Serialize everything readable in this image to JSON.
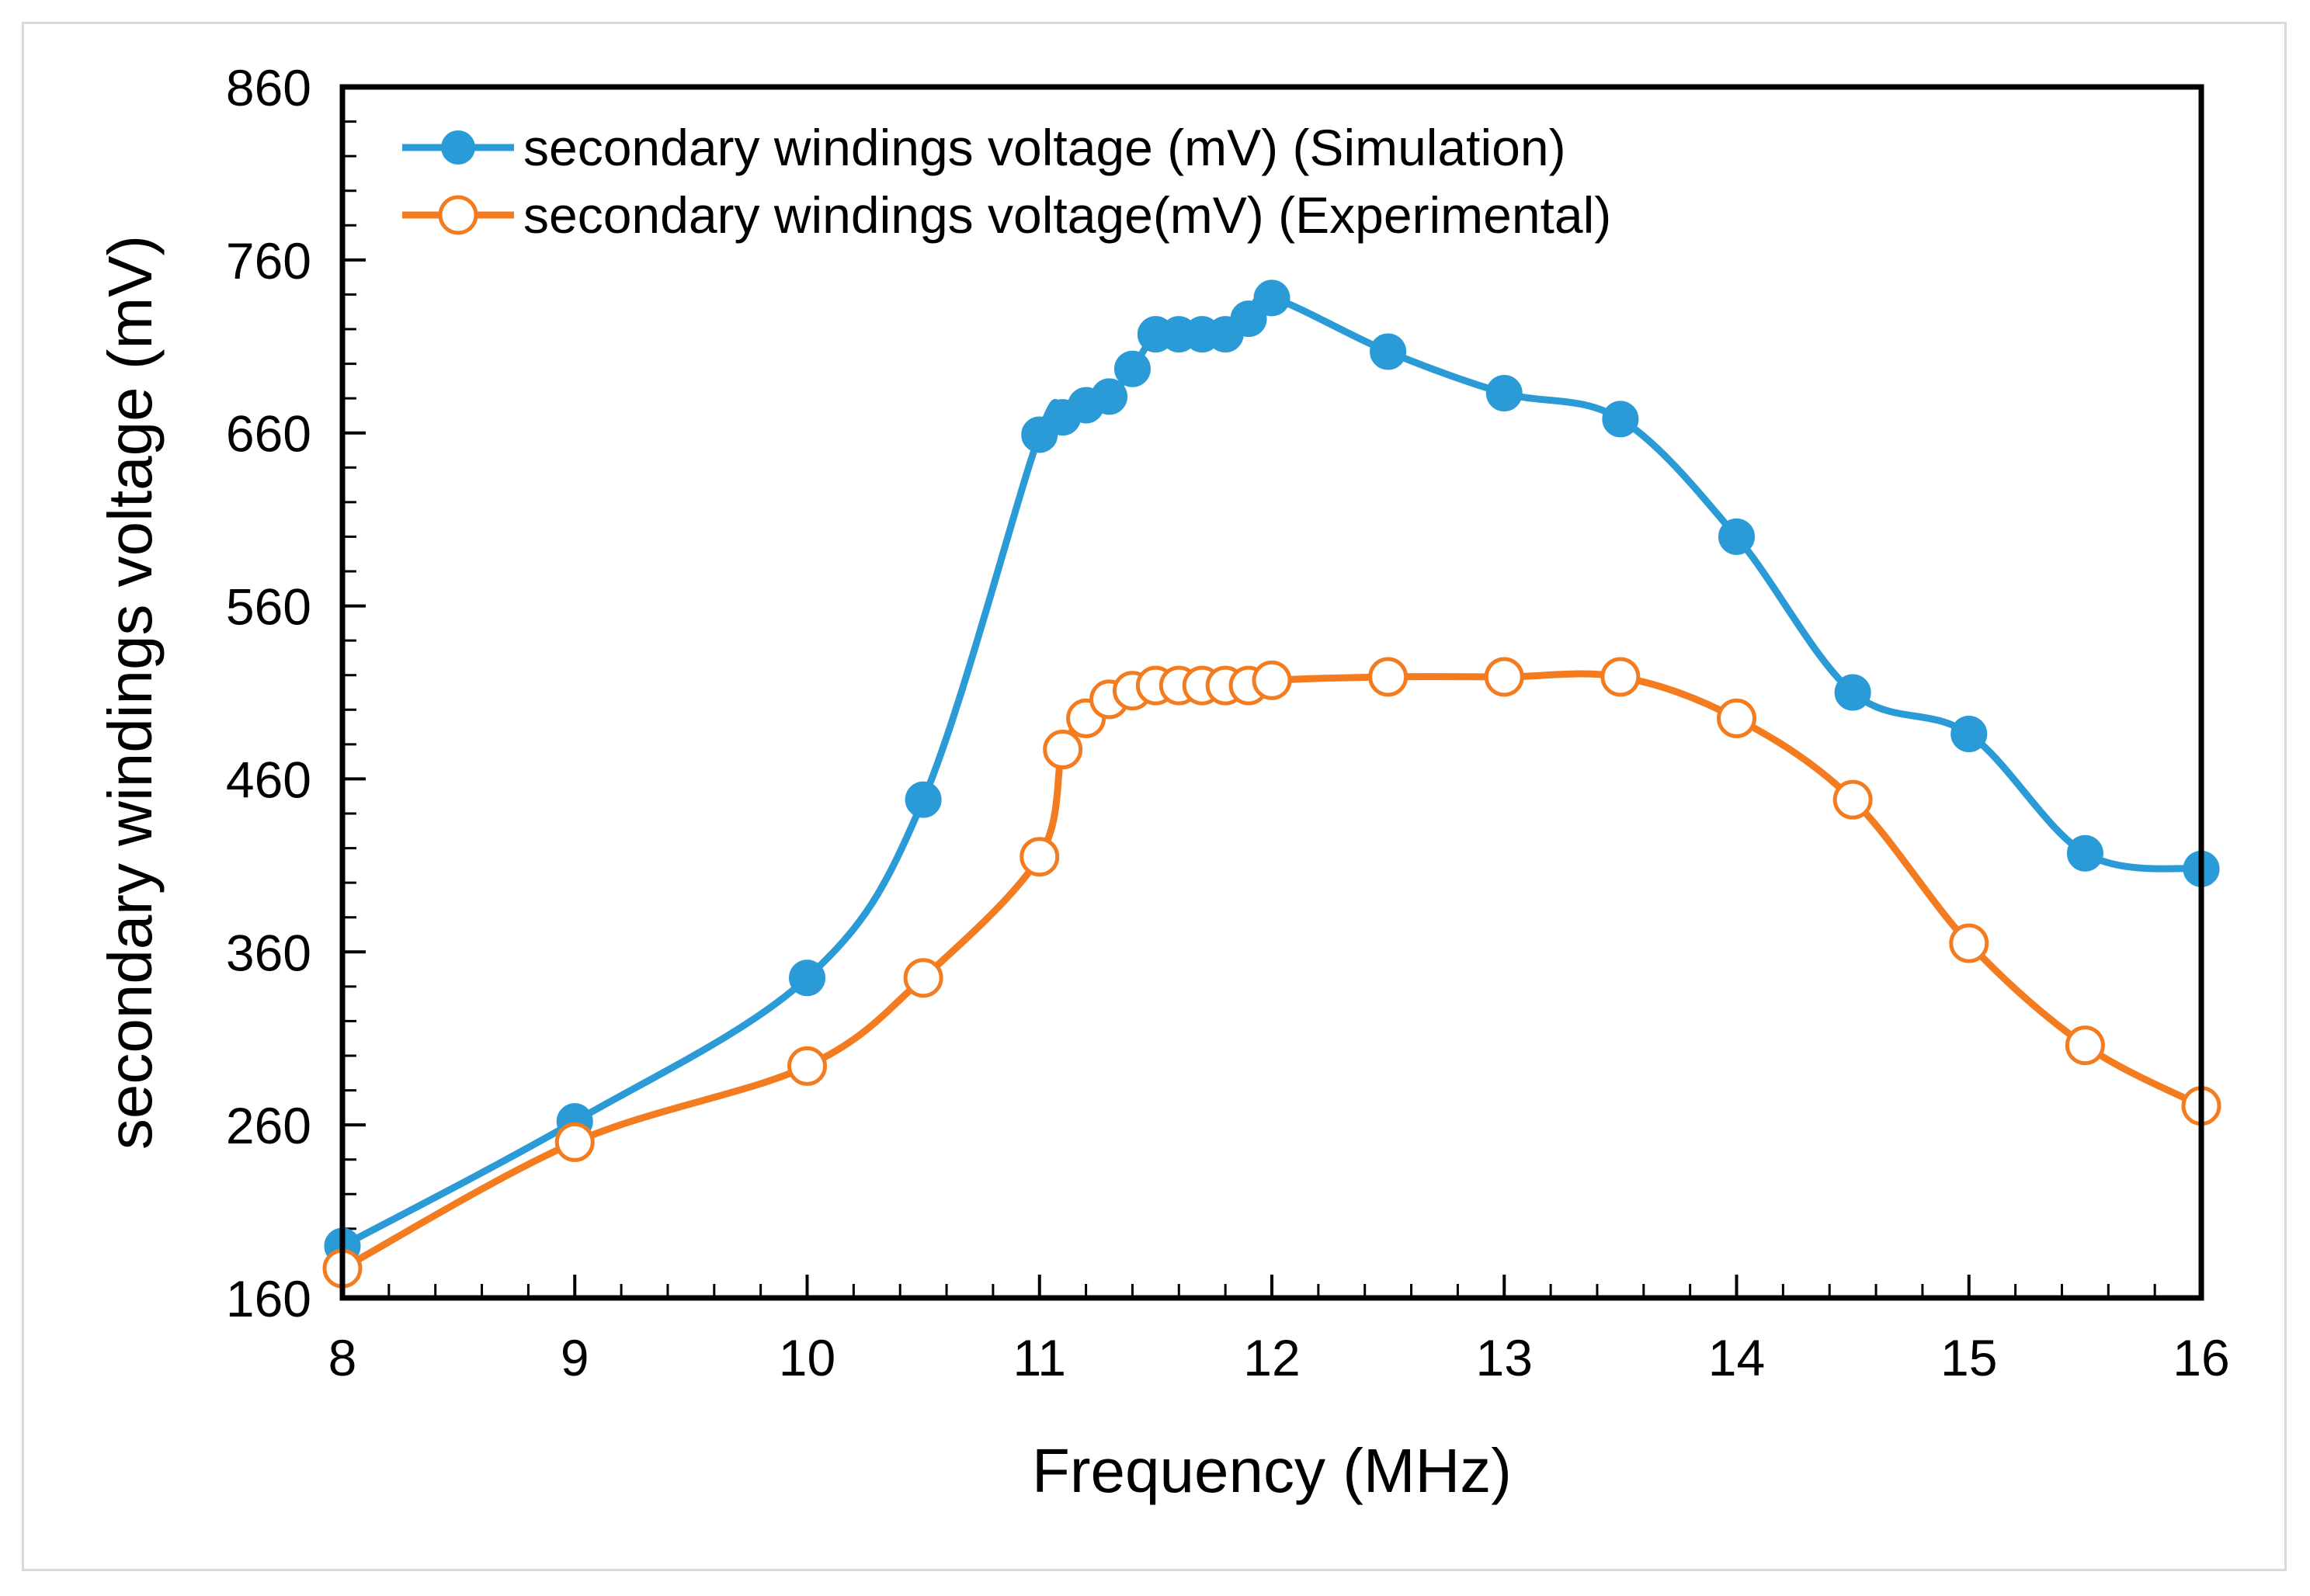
{
  "chart_data": {
    "type": "line",
    "title": "",
    "xlabel": "Frequency (MHz)",
    "ylabel": "secondary windings voltage (mV)",
    "xlim": [
      8,
      16
    ],
    "ylim": [
      160,
      860
    ],
    "xticks": [
      8,
      9,
      10,
      11,
      12,
      13,
      14,
      15,
      16
    ],
    "yticks": [
      160,
      260,
      360,
      460,
      560,
      660,
      760,
      860
    ],
    "x_minor_step": 0.2,
    "y_minor_step": 20,
    "legend_position": "top-left",
    "series": [
      {
        "name": "secondary windings voltage (mV) (Simulation)",
        "color": "#2a9bd6",
        "marker": "filled-circle",
        "x": [
          8,
          9,
          10,
          10.5,
          11,
          11.1,
          11.2,
          11.3,
          11.4,
          11.5,
          11.6,
          11.7,
          11.8,
          11.9,
          12,
          12.5,
          13,
          13.5,
          14,
          14.5,
          15,
          15.5,
          16
        ],
        "values": [
          190,
          262,
          345,
          448,
          659,
          669,
          676,
          681,
          697,
          717,
          717,
          717,
          717,
          726,
          738,
          707,
          683,
          668,
          600,
          510,
          486,
          417,
          408
        ]
      },
      {
        "name": "secondary windings voltage(mV) (Experimental)",
        "color": "#f47c20",
        "marker": "open-circle",
        "x": [
          8,
          9,
          10,
          10.5,
          11,
          11.1,
          11.2,
          11.3,
          11.4,
          11.5,
          11.6,
          11.7,
          11.8,
          11.9,
          12,
          12.5,
          13,
          13.5,
          14,
          14.5,
          15,
          15.5,
          16
        ],
        "values": [
          177,
          250,
          294,
          345,
          415,
          477,
          495,
          506,
          511,
          514,
          514,
          514,
          514,
          514,
          517,
          519,
          519,
          519,
          495,
          448,
          365,
          306,
          271
        ]
      }
    ]
  }
}
